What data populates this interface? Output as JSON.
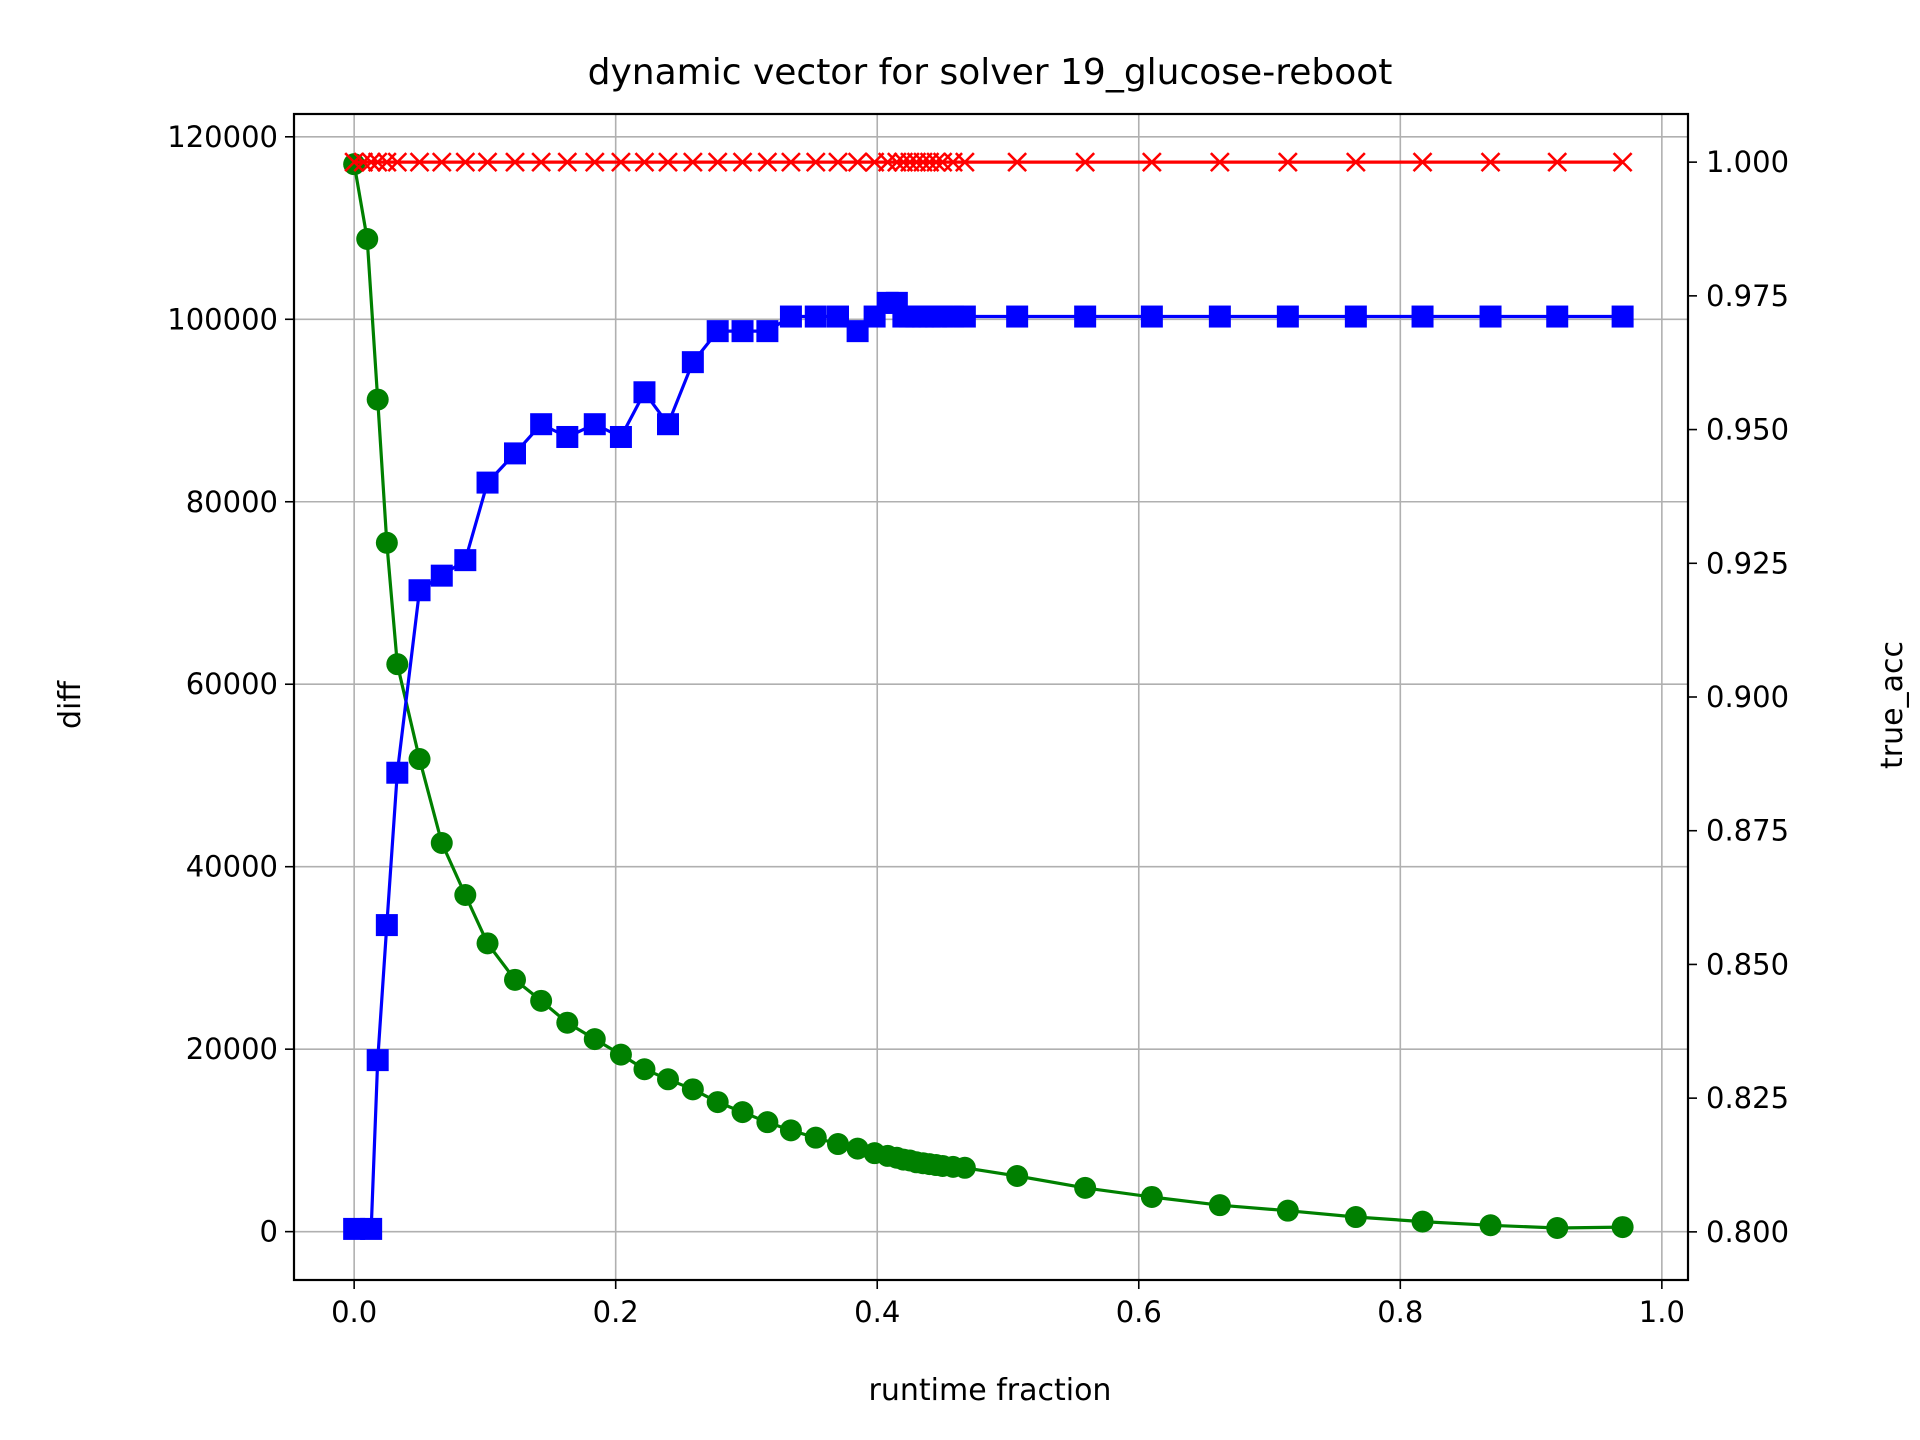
{
  "chart_data": {
    "type": "line",
    "title": "dynamic vector for solver 19_glucose-reboot",
    "xlabel": "runtime fraction",
    "ylabel_left": "diff",
    "ylabel_right": "true_acc",
    "xlim": [
      -0.046,
      1.02
    ],
    "ylim_left": [
      -5300,
      122500
    ],
    "ylim_right": [
      0.791,
      1.009
    ],
    "grid": true,
    "x_ticks": [
      0.0,
      0.2,
      0.4,
      0.6,
      0.8,
      1.0
    ],
    "x_tick_labels": [
      "0.0",
      "0.2",
      "0.4",
      "0.6",
      "0.8",
      "1.0"
    ],
    "y_left_ticks": [
      0,
      20000,
      40000,
      60000,
      80000,
      100000,
      120000
    ],
    "y_left_tick_labels": [
      "0",
      "20000",
      "40000",
      "60000",
      "80000",
      "100000",
      "120000"
    ],
    "y_right_ticks": [
      0.8,
      0.825,
      0.85,
      0.875,
      0.9,
      0.925,
      0.95,
      0.975,
      1.0
    ],
    "y_right_tick_labels": [
      "0.800",
      "0.825",
      "0.850",
      "0.875",
      "0.900",
      "0.925",
      "0.950",
      "0.975",
      "1.000"
    ],
    "colors": {
      "diff": "#008000",
      "blue_series": "#0000ff",
      "true_acc": "#ff0000",
      "grid": "#b0b0b0",
      "left_label": "#008000",
      "right_label": "#ff0000"
    },
    "series": [
      {
        "axis": "left",
        "marker": "circle",
        "color": "#008000",
        "x": [
          0.0,
          0.01,
          0.018,
          0.025,
          0.033,
          0.05,
          0.067,
          0.085,
          0.102,
          0.123,
          0.143,
          0.163,
          0.184,
          0.204,
          0.222,
          0.24,
          0.259,
          0.278,
          0.297,
          0.316,
          0.334,
          0.353,
          0.37,
          0.385,
          0.398,
          0.408,
          0.415,
          0.42,
          0.425,
          0.43,
          0.435,
          0.44,
          0.445,
          0.45,
          0.458,
          0.467,
          0.507,
          0.559,
          0.61,
          0.662,
          0.714,
          0.766,
          0.817,
          0.869,
          0.92,
          0.97
        ],
        "values": [
          117000,
          108800,
          91200,
          75500,
          62200,
          51800,
          42600,
          36900,
          31600,
          27600,
          25300,
          22900,
          21100,
          19400,
          17800,
          16700,
          15600,
          14200,
          13100,
          12000,
          11100,
          10300,
          9600,
          9100,
          8600,
          8300,
          8100,
          7900,
          7800,
          7600,
          7500,
          7400,
          7300,
          7200,
          7100,
          7000,
          6100,
          4800,
          3800,
          2900,
          2300,
          1600,
          1100,
          700,
          400,
          500
        ]
      },
      {
        "axis": "left",
        "marker": "square",
        "color": "#0000ff",
        "x": [
          0.0,
          0.013,
          0.018,
          0.025,
          0.033,
          0.05,
          0.067,
          0.085,
          0.102,
          0.123,
          0.143,
          0.163,
          0.184,
          0.204,
          0.222,
          0.24,
          0.259,
          0.278,
          0.297,
          0.316,
          0.334,
          0.353,
          0.37,
          0.385,
          0.398,
          0.408,
          0.415,
          0.42,
          0.425,
          0.43,
          0.435,
          0.44,
          0.445,
          0.45,
          0.458,
          0.467,
          0.507,
          0.559,
          0.61,
          0.662,
          0.714,
          0.766,
          0.817,
          0.869,
          0.92,
          0.97
        ],
        "values": [
          300,
          300,
          18800,
          33600,
          50300,
          70300,
          71900,
          73600,
          82100,
          85300,
          88500,
          87100,
          88500,
          87100,
          92000,
          88500,
          95300,
          98700,
          98700,
          98700,
          100300,
          100300,
          100300,
          98700,
          100300,
          101800,
          101800,
          100300,
          100300,
          100300,
          100300,
          100300,
          100300,
          100300,
          100300,
          100300,
          100300,
          100300,
          100300,
          100300,
          100300,
          100300,
          100300,
          100300,
          100300,
          100300
        ]
      },
      {
        "axis": "right",
        "marker": "x",
        "color": "#ff0000",
        "x": [
          0.0,
          0.007,
          0.013,
          0.018,
          0.025,
          0.033,
          0.05,
          0.067,
          0.085,
          0.102,
          0.123,
          0.143,
          0.163,
          0.184,
          0.204,
          0.222,
          0.24,
          0.259,
          0.278,
          0.297,
          0.316,
          0.334,
          0.353,
          0.37,
          0.385,
          0.398,
          0.408,
          0.415,
          0.42,
          0.425,
          0.43,
          0.435,
          0.44,
          0.445,
          0.45,
          0.458,
          0.467,
          0.507,
          0.559,
          0.61,
          0.662,
          0.714,
          0.766,
          0.817,
          0.869,
          0.92,
          0.97
        ],
        "values": [
          1.0,
          1.0,
          1.0,
          1.0,
          1.0,
          1.0,
          1.0,
          1.0,
          1.0,
          1.0,
          1.0,
          1.0,
          1.0,
          1.0,
          1.0,
          1.0,
          1.0,
          1.0,
          1.0,
          1.0,
          1.0,
          1.0,
          1.0,
          1.0,
          1.0,
          1.0,
          1.0,
          1.0,
          1.0,
          1.0,
          1.0,
          1.0,
          1.0,
          1.0,
          1.0,
          1.0,
          1.0,
          1.0,
          1.0,
          1.0,
          1.0,
          1.0,
          1.0,
          1.0,
          1.0,
          1.0,
          1.0
        ]
      }
    ]
  }
}
